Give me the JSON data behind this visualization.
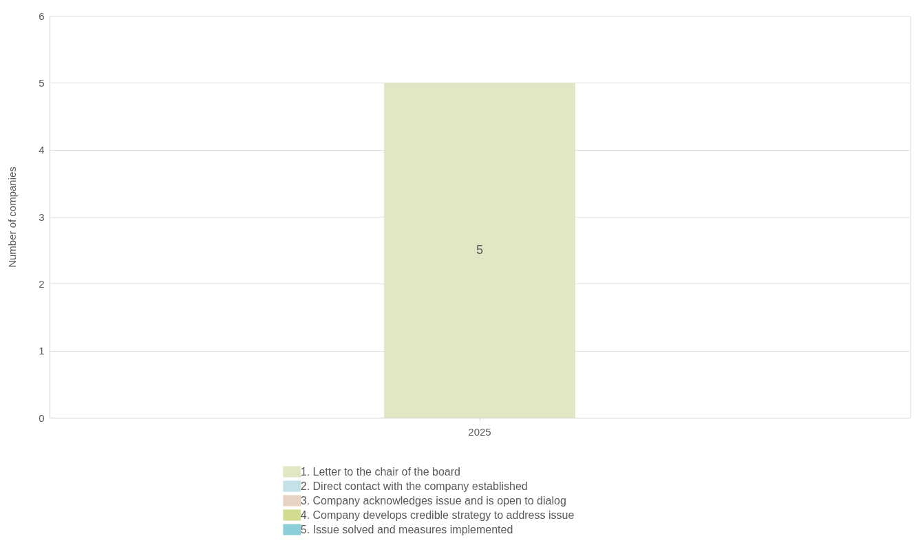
{
  "chart_data": {
    "type": "bar",
    "ylabel": "Number of companies",
    "categories": [
      "2025"
    ],
    "series": [
      {
        "name": "1. Letter to the chair of the board",
        "color": "#e1e6c4",
        "values": [
          5
        ],
        "value_labels": [
          "5"
        ]
      },
      {
        "name": "2. Direct contact with the company established",
        "color": "#c3e1e7",
        "values": [
          0
        ],
        "value_labels": [
          null
        ]
      },
      {
        "name": "3. Company acknowledges issue and is open to dialog",
        "color": "#e6d3c4",
        "values": [
          0
        ],
        "value_labels": [
          null
        ]
      },
      {
        "name": "4. Company develops credible strategy to address issue",
        "color": "#d2db8e",
        "values": [
          0
        ],
        "value_labels": [
          null
        ]
      },
      {
        "name": "5. Issue solved and measures implemented",
        "color": "#8ccfd8",
        "values": [
          0
        ],
        "value_labels": [
          null
        ]
      }
    ],
    "ylim": [
      0,
      6
    ],
    "yticks": [
      0,
      1,
      2,
      3,
      4,
      5,
      6
    ],
    "grid": "y",
    "legend": "bottom"
  }
}
